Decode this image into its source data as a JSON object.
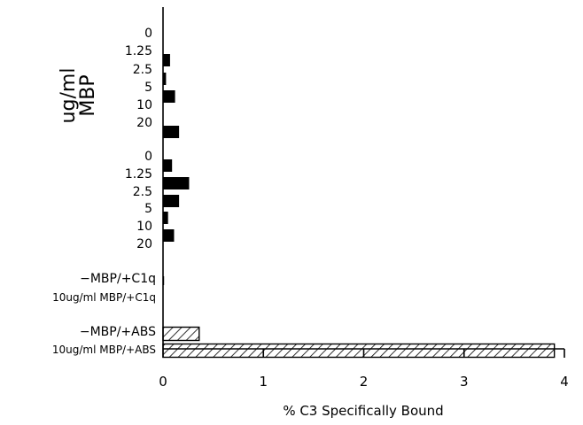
{
  "chart_data": {
    "type": "bar",
    "orientation": "horizontal",
    "xlabel": "% C3 Specifically Bound",
    "ylabel": "ug/ml MBP",
    "xlim": [
      0,
      4
    ],
    "xticks": [
      0,
      1,
      2,
      3,
      4
    ],
    "grid": false,
    "categories": [
      "0",
      "1.25",
      "2.5",
      "5",
      "10",
      "20",
      "0",
      "1.25",
      "2.5",
      "5",
      "10",
      "20",
      "−MBP/+C1q",
      "10ug/ml MBP/+C1q",
      "−MBP/+ABS",
      "10ug/ml MBP/+ABS"
    ],
    "values": [
      0.0,
      0.07,
      0.03,
      0.12,
      0.0,
      0.16,
      0.09,
      0.26,
      0.16,
      0.05,
      0.11,
      0.0,
      0.01,
      0.0,
      0.36,
      3.9
    ],
    "fills": [
      "solid",
      "solid",
      "solid",
      "solid",
      "solid",
      "solid",
      "solid",
      "solid",
      "solid",
      "solid",
      "solid",
      "solid",
      "solid",
      "solid",
      "hatched",
      "hatched"
    ]
  },
  "colors": {
    "bar": "#000000",
    "axis": "#000000",
    "background": "#ffffff"
  }
}
